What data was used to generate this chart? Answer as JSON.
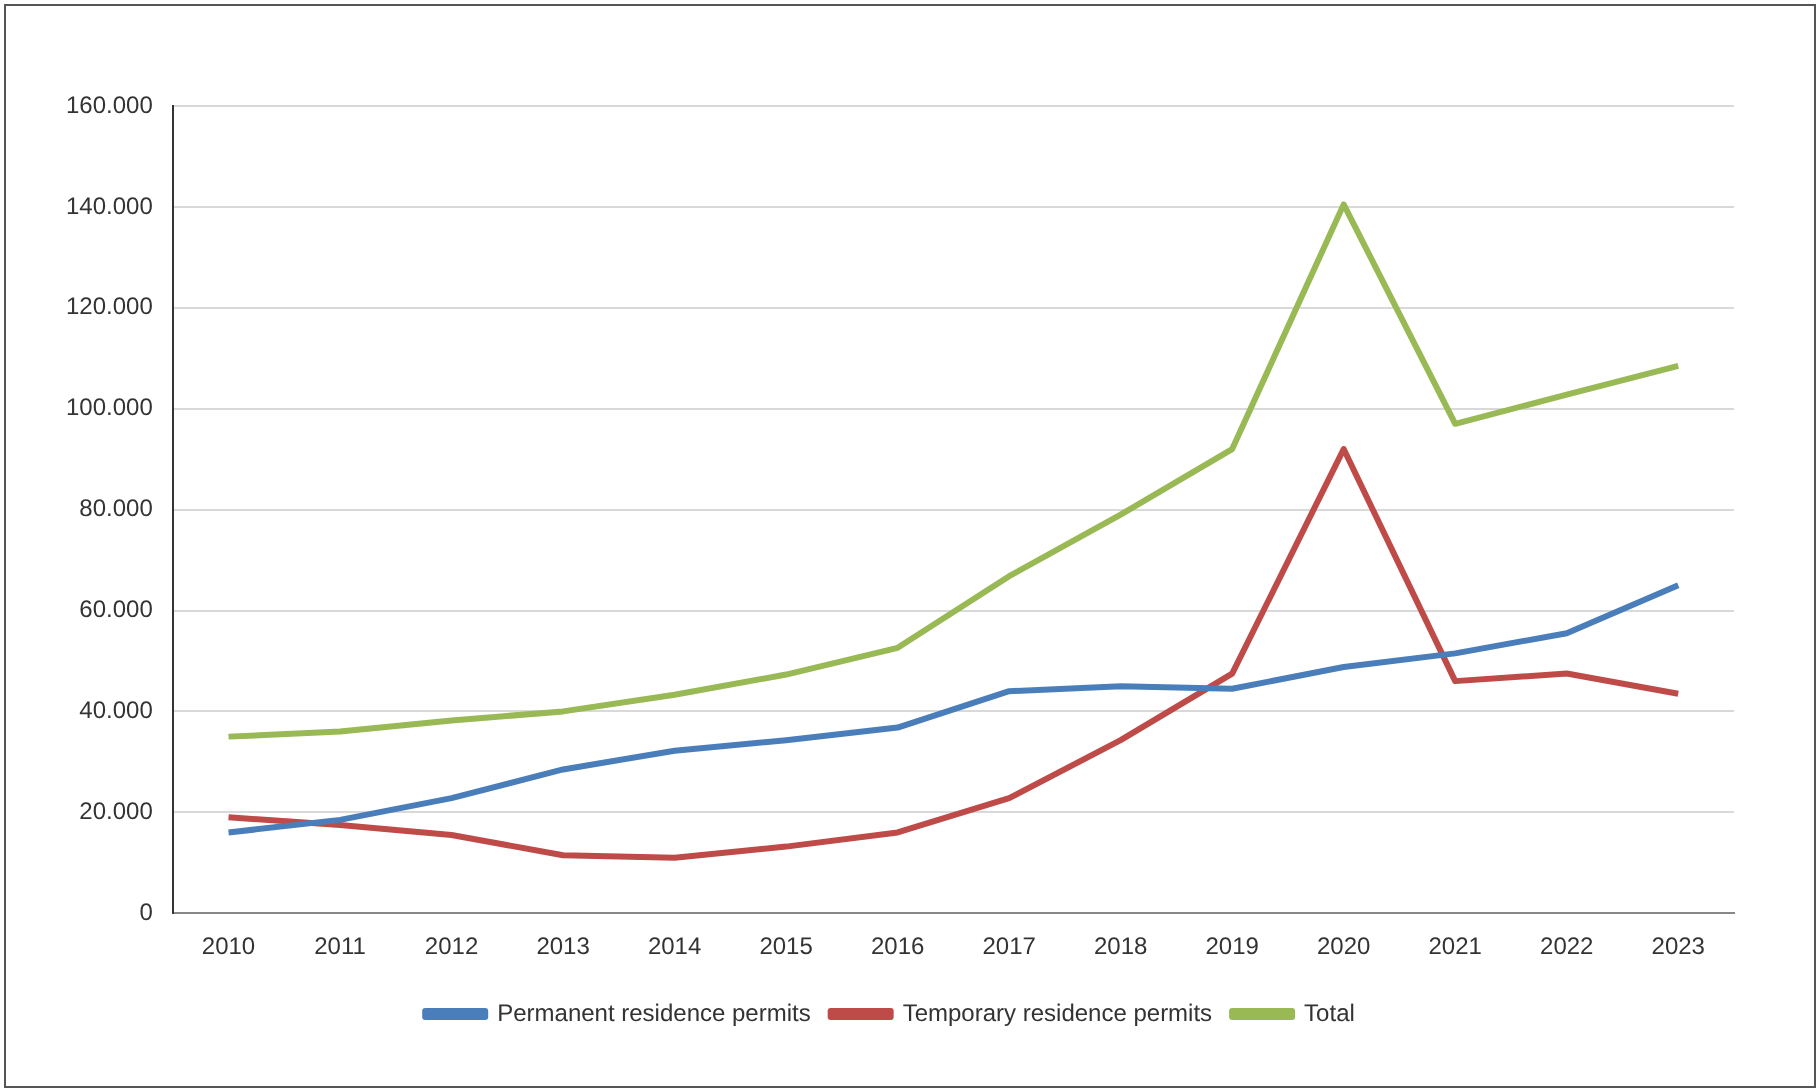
{
  "chart_data": {
    "type": "line",
    "categories": [
      "2010",
      "2011",
      "2012",
      "2013",
      "2014",
      "2015",
      "2016",
      "2017",
      "2018",
      "2019",
      "2020",
      "2021",
      "2022",
      "2023"
    ],
    "series": [
      {
        "name": "Permanent residence permits",
        "color": "#4a7ebb",
        "values": [
          16000,
          18500,
          22800,
          28500,
          32200,
          34300,
          36800,
          44000,
          45000,
          44500,
          48800,
          51500,
          55500,
          65000
        ]
      },
      {
        "name": "Temporary residence permits",
        "color": "#be4b48",
        "values": [
          19000,
          17500,
          15500,
          11500,
          11000,
          13200,
          16000,
          22800,
          34300,
          47500,
          92000,
          46000,
          47500,
          43500
        ]
      },
      {
        "name": "Total",
        "color": "#98b954",
        "values": [
          35000,
          36000,
          38200,
          40000,
          43300,
          47300,
          52600,
          66800,
          79000,
          92000,
          140500,
          97000,
          102800,
          108500
        ]
      }
    ],
    "ylim": [
      0,
      160000
    ],
    "yticks": [
      {
        "value": 0,
        "label": "0"
      },
      {
        "value": 20000,
        "label": "20.000"
      },
      {
        "value": 40000,
        "label": "40.000"
      },
      {
        "value": 60000,
        "label": "60.000"
      },
      {
        "value": 80000,
        "label": "80.000"
      },
      {
        "value": 100000,
        "label": "100.000"
      },
      {
        "value": 120000,
        "label": "120.000"
      },
      {
        "value": 140000,
        "label": "140.000"
      },
      {
        "value": 160000,
        "label": "160.000"
      }
    ],
    "grid": "y",
    "legend": "bottom",
    "marker": "none",
    "line_style": "solid"
  }
}
